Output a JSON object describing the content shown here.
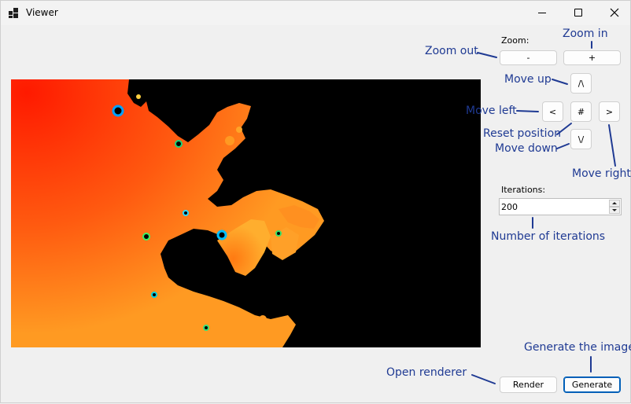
{
  "window": {
    "title": "Viewer"
  },
  "title_icons": {
    "app": "app-icon",
    "minimize": "minimize-icon",
    "maximize": "maximize-icon",
    "close": "close-icon"
  },
  "controls": {
    "zoom_label": "Zoom:",
    "zoom_out": "-",
    "zoom_in": "+",
    "move_up": "/\\",
    "move_left": "<",
    "reset": "#",
    "move_right": ">",
    "move_down": "\\/",
    "iterations_label": "Iterations:",
    "iterations_value": "200",
    "render": "Render",
    "generate": "Generate"
  },
  "annotations": {
    "zoom_out": "Zoom out",
    "zoom_in": "Zoom in",
    "move_up": "Move up",
    "move_left": "Move left",
    "reset_position": "Reset position",
    "move_down": "Move down",
    "move_right": "Move right",
    "iterations": "Number of iterations",
    "open_renderer": "Open renderer",
    "generate_image": "Generate the image",
    "color": "#1f3a93"
  },
  "colors": {
    "fractal_outer": "#ff2a00",
    "fractal_mid": "#ff8a1a",
    "fractal_edge": "#ffb030",
    "fractal_inside": "#000000",
    "accent": "#005fb8"
  }
}
